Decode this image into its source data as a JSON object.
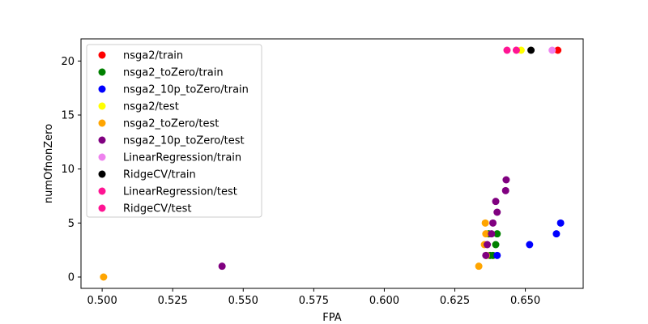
{
  "chart_data": {
    "type": "scatter",
    "xlabel": "FPA",
    "ylabel": "numOfnonZero",
    "xlim": [
      0.4925,
      0.6705
    ],
    "ylim": [
      -1.05,
      22.05
    ],
    "xticks": [
      0.5,
      0.525,
      0.55,
      0.575,
      0.6,
      0.625,
      0.65
    ],
    "xtick_labels": [
      "0.500",
      "0.525",
      "0.550",
      "0.575",
      "0.600",
      "0.625",
      "0.650"
    ],
    "yticks": [
      0,
      5,
      10,
      15,
      20
    ],
    "ytick_labels": [
      "0",
      "5",
      "10",
      "15",
      "20"
    ],
    "grid": false,
    "legend_position": "upper-left",
    "series": [
      {
        "name": "nsga2/train",
        "color": "#ff0000",
        "points": [
          [
            0.6615,
            21
          ]
        ]
      },
      {
        "name": "nsga2_toZero/train",
        "color": "#008000",
        "points": [
          [
            0.6385,
            2
          ],
          [
            0.6395,
            3
          ],
          [
            0.64,
            4
          ],
          [
            0.6375,
            2
          ],
          [
            0.637,
            4
          ]
        ]
      },
      {
        "name": "nsga2_10p_toZero/train",
        "color": "#0000ff",
        "points": [
          [
            0.6625,
            5
          ],
          [
            0.661,
            4
          ],
          [
            0.6515,
            3
          ],
          [
            0.64,
            2
          ]
        ]
      },
      {
        "name": "nsga2/test",
        "color": "#ffff00",
        "points": [
          [
            0.6485,
            21
          ]
        ]
      },
      {
        "name": "nsga2_toZero/test",
        "color": "#ffa500",
        "points": [
          [
            0.5005,
            0
          ],
          [
            0.6335,
            1
          ],
          [
            0.6355,
            3
          ],
          [
            0.636,
            4
          ],
          [
            0.6358,
            5
          ],
          [
            0.6362,
            2
          ]
        ]
      },
      {
        "name": "nsga2_10p_toZero/test",
        "color": "#800080",
        "points": [
          [
            0.5425,
            1
          ],
          [
            0.636,
            2
          ],
          [
            0.6365,
            3
          ],
          [
            0.638,
            4
          ],
          [
            0.6385,
            5
          ],
          [
            0.64,
            6
          ],
          [
            0.6395,
            7
          ],
          [
            0.643,
            8
          ],
          [
            0.6432,
            9
          ]
        ]
      },
      {
        "name": "LinearRegression/train",
        "color": "#ee82ee",
        "points": [
          [
            0.6595,
            21
          ]
        ]
      },
      {
        "name": "RidgeCV/train",
        "color": "#000000",
        "points": [
          [
            0.652,
            21
          ]
        ]
      },
      {
        "name": "LinearRegression/test",
        "color": "#ff1493",
        "points": [
          [
            0.6435,
            21
          ]
        ]
      },
      {
        "name": "RidgeCV/test",
        "color": "#ff1493",
        "points": [
          [
            0.6468,
            21
          ]
        ]
      }
    ]
  }
}
